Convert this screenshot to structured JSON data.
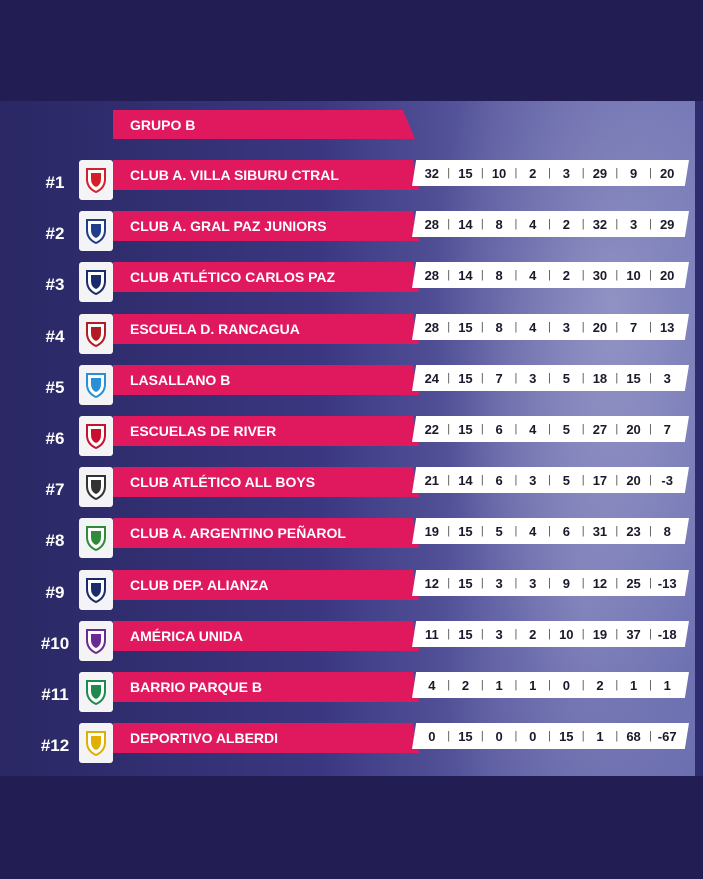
{
  "group_title": "GRUPO B",
  "separator": "|",
  "teams": [
    {
      "rank": "#1",
      "name": "CLUB A. VILLA SIBURU CTRAL",
      "stats": [
        "32",
        "15",
        "10",
        "2",
        "3",
        "29",
        "9",
        "20"
      ],
      "logo_icon": "shield-red-white-icon",
      "logo_color": "#d41f2b"
    },
    {
      "rank": "#2",
      "name": "CLUB A. GRAL PAZ JUNIORS",
      "stats": [
        "28",
        "14",
        "8",
        "4",
        "2",
        "32",
        "3",
        "29"
      ],
      "logo_icon": "shield-blue-white-icon",
      "logo_color": "#1f3d8a"
    },
    {
      "rank": "#3",
      "name": "CLUB ATLÉTICO CARLOS PAZ",
      "stats": [
        "28",
        "14",
        "8",
        "4",
        "2",
        "30",
        "10",
        "20"
      ],
      "logo_icon": "shield-navy-icon",
      "logo_color": "#1b2a6b"
    },
    {
      "rank": "#4",
      "name": "ESCUELA D. RANCAGUA",
      "stats": [
        "28",
        "15",
        "8",
        "4",
        "3",
        "20",
        "7",
        "13"
      ],
      "logo_icon": "shield-red-black-icon",
      "logo_color": "#b11d22"
    },
    {
      "rank": "#5",
      "name": "LASALLANO B",
      "stats": [
        "24",
        "15",
        "7",
        "3",
        "5",
        "18",
        "15",
        "3"
      ],
      "logo_icon": "badge-blue-round-icon",
      "logo_color": "#2a8fd4"
    },
    {
      "rank": "#6",
      "name": "ESCUELAS DE RIVER",
      "stats": [
        "22",
        "15",
        "6",
        "4",
        "5",
        "27",
        "20",
        "7"
      ],
      "logo_icon": "shield-river-icon",
      "logo_color": "#c8102e"
    },
    {
      "rank": "#7",
      "name": "CLUB ATLÉTICO ALL BOYS",
      "stats": [
        "21",
        "14",
        "6",
        "3",
        "5",
        "17",
        "20",
        "-3"
      ],
      "logo_icon": "shield-white-black-icon",
      "logo_color": "#333333"
    },
    {
      "rank": "#8",
      "name": "CLUB A. ARGENTINO PEÑAROL",
      "stats": [
        "19",
        "15",
        "5",
        "4",
        "6",
        "31",
        "23",
        "8"
      ],
      "logo_icon": "shield-green-red-icon",
      "logo_color": "#2e8b3a"
    },
    {
      "rank": "#9",
      "name": "CLUB DEP. ALIANZA",
      "stats": [
        "12",
        "15",
        "3",
        "3",
        "9",
        "12",
        "25",
        "-13"
      ],
      "logo_icon": "shield-striped-icon",
      "logo_color": "#1b2a6b"
    },
    {
      "rank": "#10",
      "name": "AMÉRICA UNIDA",
      "stats": [
        "11",
        "15",
        "3",
        "2",
        "10",
        "19",
        "37",
        "-18"
      ],
      "logo_icon": "star-purple-icon",
      "logo_color": "#6b2a8f"
    },
    {
      "rank": "#11",
      "name": "BARRIO PARQUE B",
      "stats": [
        "4",
        "2",
        "1",
        "1",
        "0",
        "2",
        "1",
        "1"
      ],
      "logo_icon": "badge-green-icon",
      "logo_color": "#1f8a4c"
    },
    {
      "rank": "#12",
      "name": "DEPORTIVO ALBERDI",
      "stats": [
        "0",
        "15",
        "0",
        "0",
        "15",
        "1",
        "68",
        "-67"
      ],
      "logo_icon": "shield-yellow-red-icon",
      "logo_color": "#e0b000"
    }
  ]
}
